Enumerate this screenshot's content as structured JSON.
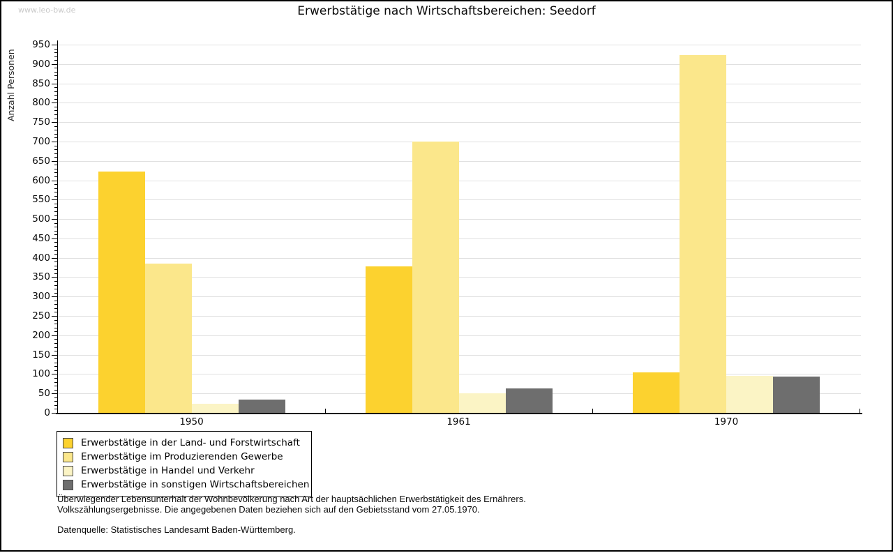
{
  "page": {
    "watermark": "www.leo-bw.de",
    "title": "Erwerbstätige nach Wirtschaftsbereichen: Seedorf"
  },
  "chart_data": {
    "type": "bar",
    "title": "Erwerbstätige nach Wirtschaftsbereichen: Seedorf",
    "xlabel": "",
    "ylabel": "Anzahl Personen",
    "categories": [
      "1950",
      "1961",
      "1970"
    ],
    "series": [
      {
        "name": "Erwerbstätige in der Land- und Forstwirtschaft",
        "color": "#FCD22F",
        "values": [
          622,
          378,
          104
        ]
      },
      {
        "name": "Erwerbstätige im Produzierenden Gewerbe",
        "color": "#FBE78B",
        "values": [
          385,
          700,
          923
        ]
      },
      {
        "name": "Erwerbstätige in Handel und Verkehr",
        "color": "#FBF4C5",
        "values": [
          23,
          50,
          96
        ]
      },
      {
        "name": "Erwerbstätige in sonstigen Wirtschaftsbereichen",
        "color": "#6E6E6E",
        "values": [
          35,
          63,
          93
        ]
      }
    ],
    "ylim": [
      0,
      950
    ],
    "ytick_step": 50,
    "yminor_step": 10,
    "grid": true,
    "gridline_color": "#e0e0e0",
    "legend_position": "bottom-left"
  },
  "footer": {
    "line1": "Überwiegender Lebensunterhalt der Wohnbevölkerung nach Art der hauptsächlichen Erwerbstätigkeit des Ernährers.",
    "line2": "Volkszählungsergebnisse. Die angegebenen Daten beziehen sich auf den Gebietsstand vom 27.05.1970.",
    "source": "Datenquelle: Statistisches Landesamt Baden-Württemberg."
  }
}
